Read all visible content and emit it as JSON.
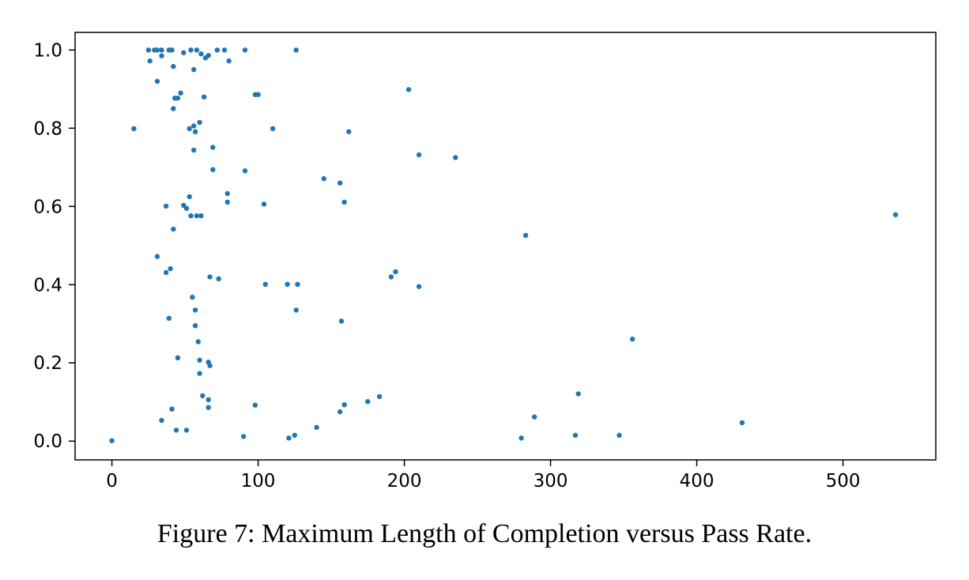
{
  "figure": {
    "caption": "Figure 7: Maximum Length of Completion versus Pass Rate."
  },
  "chart_data": {
    "type": "scatter",
    "title": "",
    "xlabel": "",
    "ylabel": "",
    "caption": "Figure 7: Maximum Length of Completion versus Pass Rate.",
    "x_ticks": [
      0,
      100,
      200,
      300,
      400,
      500
    ],
    "y_ticks": [
      0.0,
      0.2,
      0.4,
      0.6,
      0.8,
      1.0
    ],
    "xlim": [
      -25.2,
      563.5
    ],
    "ylim": [
      -0.048,
      1.045
    ],
    "grid": false,
    "legend": null,
    "marker_color": "#1f77b4",
    "axis_color": "#000000",
    "series_name": "max-completion-length-vs-pass-rate",
    "points": [
      [
        25,
        1.0
      ],
      [
        29,
        1.0
      ],
      [
        31,
        1.0
      ],
      [
        34,
        1.0
      ],
      [
        39,
        1.0
      ],
      [
        41,
        1.0
      ],
      [
        49,
        0.993
      ],
      [
        54,
        1.0
      ],
      [
        58,
        1.0
      ],
      [
        61,
        0.99
      ],
      [
        66,
        0.986
      ],
      [
        72,
        1.0
      ],
      [
        77,
        1.0
      ],
      [
        91,
        1.0
      ],
      [
        126,
        1.0
      ],
      [
        26,
        0.972
      ],
      [
        34,
        0.985
      ],
      [
        64,
        0.98
      ],
      [
        80,
        0.972
      ],
      [
        42,
        0.958
      ],
      [
        56,
        0.95
      ],
      [
        31,
        0.92
      ],
      [
        47,
        0.89
      ],
      [
        63,
        0.88
      ],
      [
        43,
        0.877
      ],
      [
        45,
        0.877
      ],
      [
        98,
        0.886
      ],
      [
        100,
        0.886
      ],
      [
        42,
        0.85
      ],
      [
        203,
        0.899
      ],
      [
        15,
        0.799
      ],
      [
        60,
        0.815
      ],
      [
        56,
        0.806
      ],
      [
        53,
        0.799
      ],
      [
        57,
        0.791
      ],
      [
        110,
        0.799
      ],
      [
        162,
        0.791
      ],
      [
        56,
        0.744
      ],
      [
        69,
        0.751
      ],
      [
        210,
        0.732
      ],
      [
        235,
        0.725
      ],
      [
        69,
        0.694
      ],
      [
        91,
        0.691
      ],
      [
        145,
        0.671
      ],
      [
        156,
        0.66
      ],
      [
        53,
        0.625
      ],
      [
        79,
        0.633
      ],
      [
        79,
        0.611
      ],
      [
        104,
        0.606
      ],
      [
        159,
        0.611
      ],
      [
        37,
        0.601
      ],
      [
        49,
        0.603
      ],
      [
        51,
        0.595
      ],
      [
        54,
        0.576
      ],
      [
        58,
        0.576
      ],
      [
        61,
        0.576
      ],
      [
        42,
        0.542
      ],
      [
        283,
        0.526
      ],
      [
        536,
        0.579
      ],
      [
        31,
        0.472
      ],
      [
        40,
        0.441
      ],
      [
        37,
        0.431
      ],
      [
        67,
        0.42
      ],
      [
        73,
        0.415
      ],
      [
        105,
        0.401
      ],
      [
        120,
        0.401
      ],
      [
        127,
        0.401
      ],
      [
        191,
        0.42
      ],
      [
        194,
        0.433
      ],
      [
        210,
        0.395
      ],
      [
        356,
        0.261
      ],
      [
        55,
        0.368
      ],
      [
        57,
        0.335
      ],
      [
        126,
        0.335
      ],
      [
        39,
        0.314
      ],
      [
        57,
        0.295
      ],
      [
        157,
        0.307
      ],
      [
        59,
        0.254
      ],
      [
        45,
        0.213
      ],
      [
        60,
        0.207
      ],
      [
        66,
        0.202
      ],
      [
        67,
        0.193
      ],
      [
        60,
        0.173
      ],
      [
        62,
        0.116
      ],
      [
        66,
        0.106
      ],
      [
        66,
        0.086
      ],
      [
        41,
        0.082
      ],
      [
        98,
        0.092
      ],
      [
        156,
        0.075
      ],
      [
        159,
        0.093
      ],
      [
        175,
        0.101
      ],
      [
        183,
        0.114
      ],
      [
        319,
        0.121
      ],
      [
        289,
        0.062
      ],
      [
        431,
        0.047
      ],
      [
        34,
        0.053
      ],
      [
        44,
        0.028
      ],
      [
        51,
        0.028
      ],
      [
        0,
        0.001
      ],
      [
        90,
        0.012
      ],
      [
        121,
        0.008
      ],
      [
        125,
        0.015
      ],
      [
        140,
        0.035
      ],
      [
        280,
        0.008
      ],
      [
        317,
        0.015
      ],
      [
        347,
        0.015
      ]
    ]
  }
}
